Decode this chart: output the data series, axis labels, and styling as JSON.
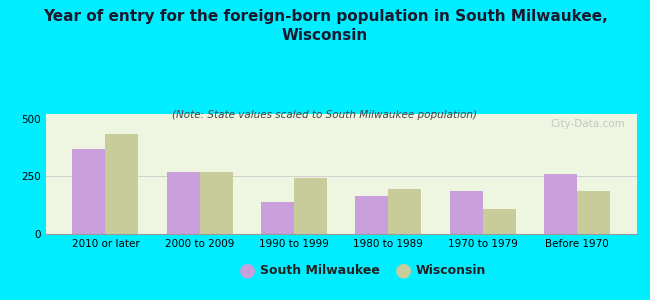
{
  "title": "Year of entry for the foreign-born population in South Milwaukee,\nWisconsin",
  "subtitle": "(Note: State values scaled to South Milwaukee population)",
  "categories": [
    "2010 or later",
    "2000 to 2009",
    "1990 to 1999",
    "1980 to 1989",
    "1970 to 1979",
    "Before 1970"
  ],
  "south_milwaukee": [
    370,
    268,
    138,
    165,
    185,
    262
  ],
  "wisconsin": [
    435,
    270,
    243,
    195,
    108,
    185
  ],
  "color_sm": "#c9a0dc",
  "color_wi": "#c8cc9a",
  "background_outer": "#00eeff",
  "background_plot": "#eef5e0",
  "ylim": [
    0,
    520
  ],
  "yticks": [
    0,
    250,
    500
  ],
  "bar_width": 0.35,
  "legend_sm": "South Milwaukee",
  "legend_wi": "Wisconsin",
  "title_fontsize": 11,
  "subtitle_fontsize": 7.5,
  "tick_fontsize": 7.5,
  "legend_fontsize": 9,
  "watermark": "City-Data.com"
}
